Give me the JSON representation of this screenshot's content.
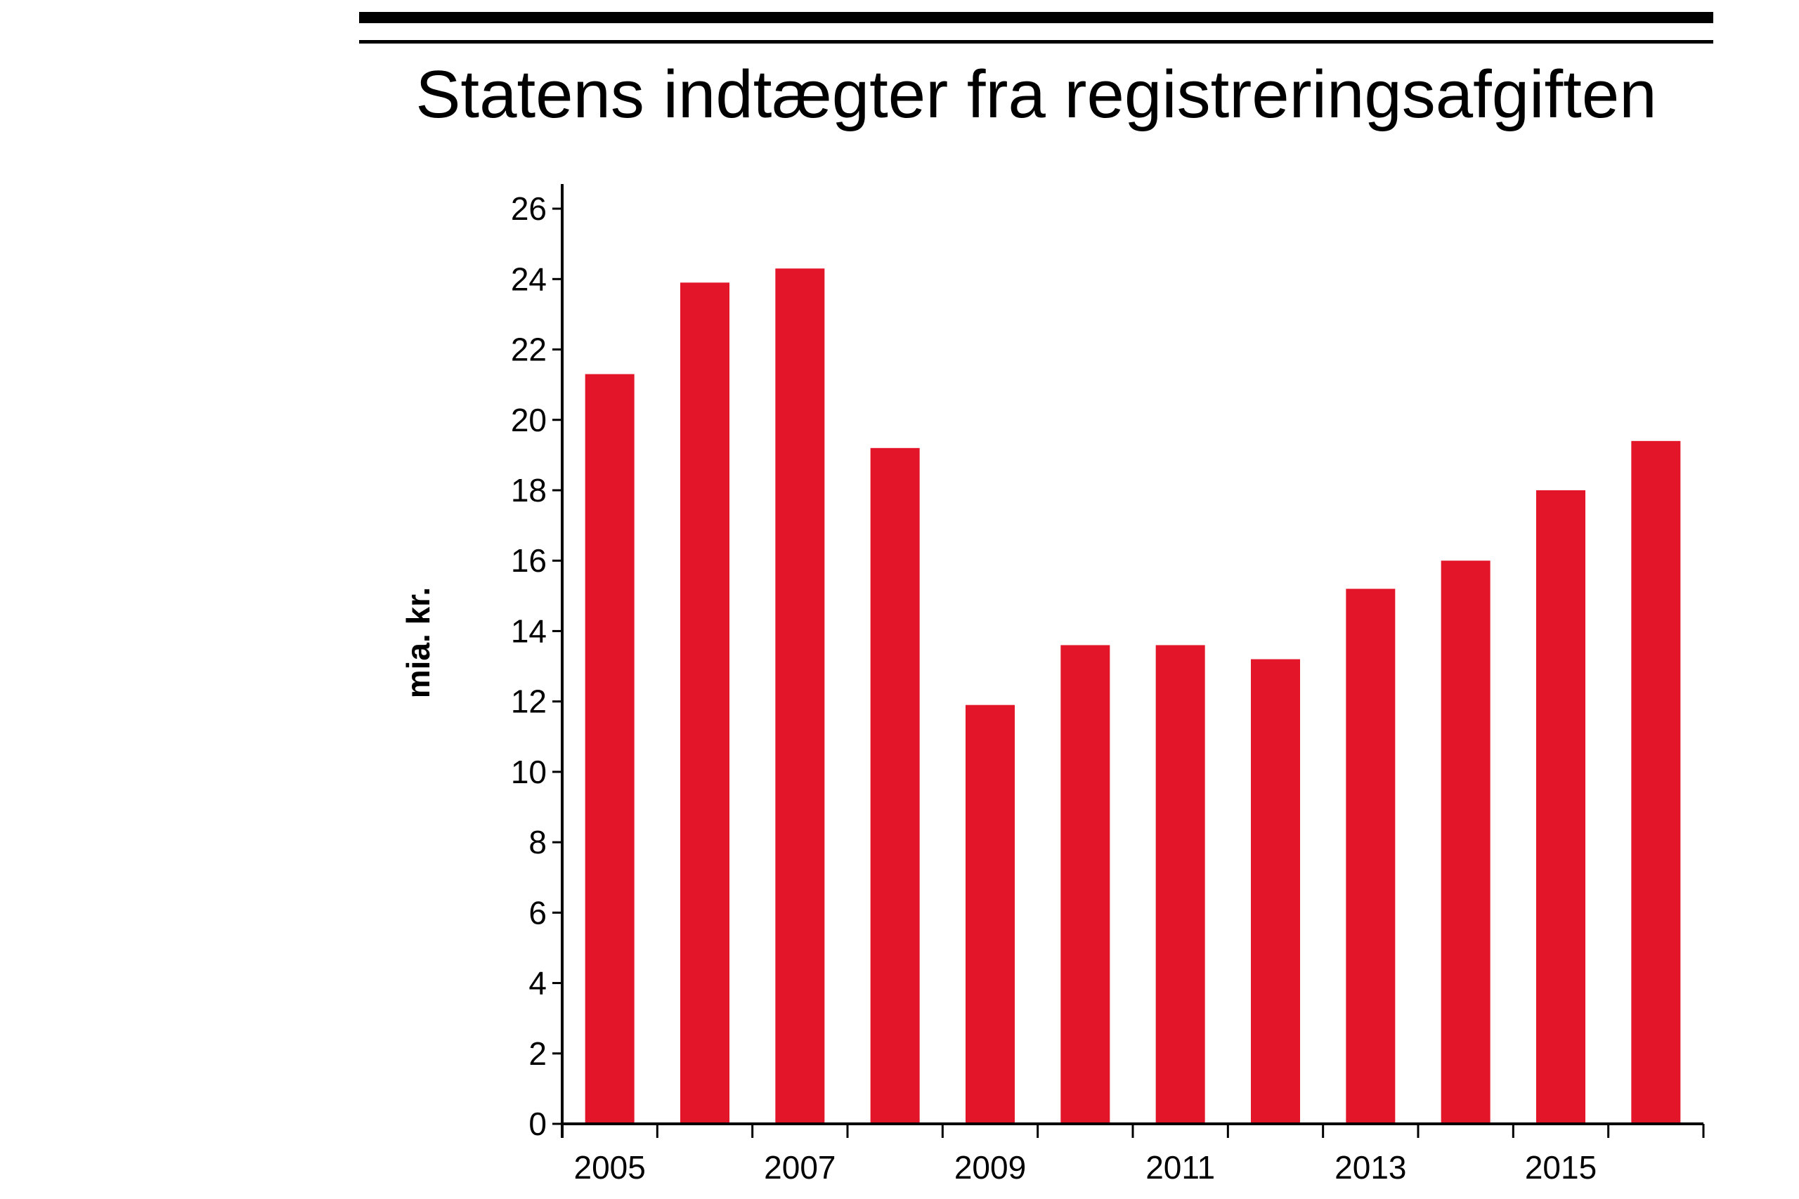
{
  "chart_data": {
    "type": "bar",
    "title": "Statens indtægter fra registreringsafgiften",
    "ylabel": "mia. kr.",
    "xlabel": "",
    "categories": [
      "2005",
      "2006",
      "2007",
      "2008",
      "2009",
      "2010",
      "2011",
      "2012",
      "2013",
      "2014",
      "2015",
      "2016"
    ],
    "values": [
      21.3,
      23.9,
      24.3,
      19.2,
      11.9,
      13.6,
      13.6,
      13.2,
      15.2,
      16.0,
      18.0,
      19.4
    ],
    "ylim": [
      0,
      26.7
    ],
    "yticks": [
      0,
      2,
      4,
      6,
      8,
      10,
      12,
      14,
      16,
      18,
      20,
      22,
      24,
      26
    ],
    "ytick_labels": [
      "0",
      "2",
      "4",
      "6",
      "8",
      "10",
      "12",
      "14",
      "16",
      "18",
      "20",
      "22",
      "24",
      "26"
    ],
    "xtick_labels": [
      "2005",
      "2007",
      "2009",
      "2011",
      "2013",
      "2015"
    ],
    "bar_color": "#e31629",
    "grid": false,
    "legend": "none"
  }
}
